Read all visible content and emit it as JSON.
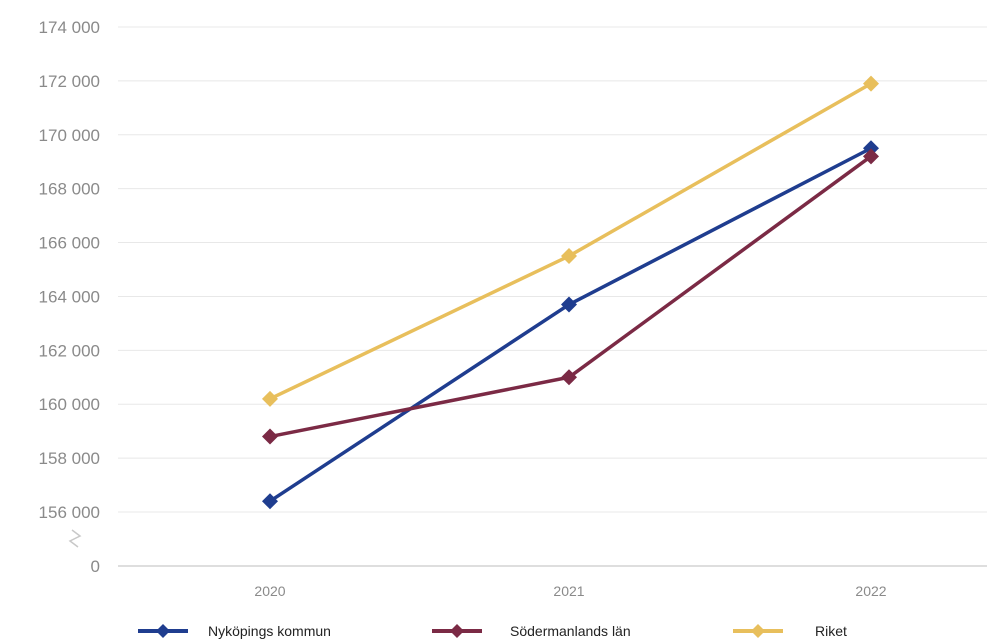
{
  "chart_data": {
    "type": "line",
    "categories": [
      "2020",
      "2021",
      "2022"
    ],
    "y_ticks": [
      "0",
      "156 000",
      "158 000",
      "160 000",
      "162 000",
      "164 000",
      "166 000",
      "168 000",
      "170 000",
      "172 000",
      "174 000"
    ],
    "y_tick_values": [
      0,
      156000,
      158000,
      160000,
      162000,
      164000,
      166000,
      168000,
      170000,
      172000,
      174000
    ],
    "ylim": [
      154000,
      174000
    ],
    "axis_break": true,
    "grid": true,
    "legend_position": "bottom",
    "series": [
      {
        "name": "Nyköpings kommun",
        "color": "#1f3d8f",
        "marker": "diamond",
        "values": [
          156400,
          163700,
          169500
        ]
      },
      {
        "name": "Södermanlands län",
        "color": "#7b2a45",
        "marker": "diamond",
        "values": [
          158800,
          161000,
          169200
        ]
      },
      {
        "name": "Riket",
        "color": "#e8bf5c",
        "marker": "diamond",
        "values": [
          160200,
          165500,
          171900
        ]
      }
    ]
  }
}
